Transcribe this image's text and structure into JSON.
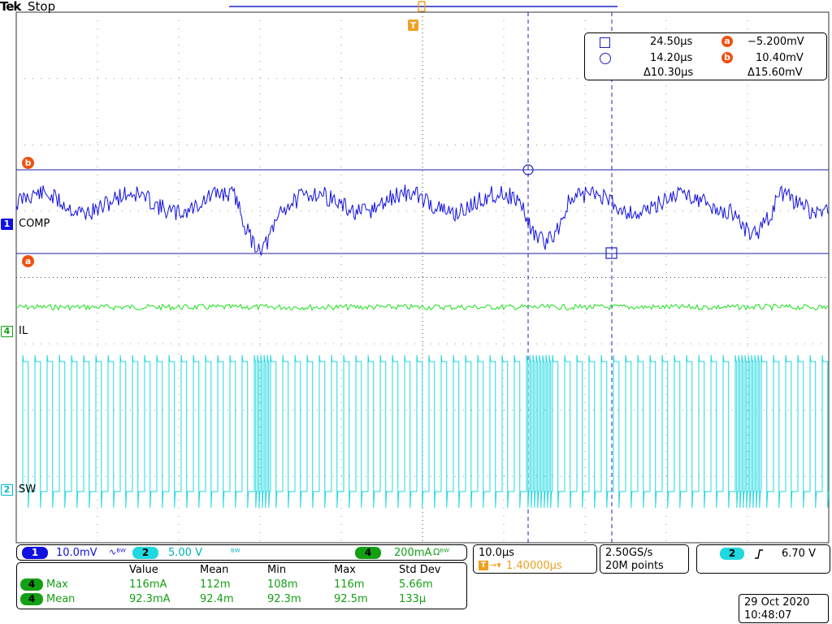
{
  "header": {
    "brand": "Tek",
    "run_state": "Stop"
  },
  "trigger_marker": "T",
  "cursor_readout": {
    "cursor_a_time": "24.50µs",
    "cursor_b_time": "14.20µs",
    "delta_time": "Δ10.30µs",
    "cursor_a_level_label": "a",
    "cursor_a_level": "−5.200mV",
    "cursor_b_level_label": "b",
    "cursor_b_level": "10.40mV",
    "delta_level": "Δ15.60mV"
  },
  "channels": {
    "ch1": {
      "number": "1",
      "label": "COMP",
      "scale": "10.0mV",
      "suffix": "∿ᴮᵂ",
      "color": "#1010e0"
    },
    "ch4": {
      "number": "4",
      "label": "IL",
      "scale": "200mA",
      "suffix": "Ωᴮᵂ",
      "color": "#1ee01e"
    },
    "ch2": {
      "number": "2",
      "label": "SW",
      "scale": "5.00 V",
      "suffix": "ᴮᵂ",
      "color": "#20d8e0"
    }
  },
  "markers": {
    "a": "a",
    "b": "b"
  },
  "timebase": {
    "scale": "10.0µs",
    "trigger_position": "1.40000µs",
    "sample_rate": "2.50GS/s",
    "record_length": "20M points"
  },
  "trigger": {
    "source": "2",
    "slope_icon": "rising-edge",
    "level": "6.70 V"
  },
  "measurements": {
    "headers": [
      "Value",
      "Mean",
      "Min",
      "Max",
      "Std Dev"
    ],
    "rows": [
      {
        "channel": "4",
        "name": "Max",
        "values": [
          "116mA",
          "112m",
          "108m",
          "116m",
          "5.66m"
        ]
      },
      {
        "channel": "4",
        "name": "Mean",
        "values": [
          "92.3mA",
          "92.4m",
          "92.3m",
          "92.5m",
          "133µ"
        ]
      }
    ]
  },
  "datetime": {
    "date": "29 Oct  2020",
    "time": "10:48:07"
  },
  "colors": {
    "cursor_marker": "#f05010",
    "trigger_orange": "#f0a020",
    "grid": "#333333",
    "ch1": "#1010e0",
    "ch2": "#20d8e0",
    "ch4": "#1ee01e"
  }
}
